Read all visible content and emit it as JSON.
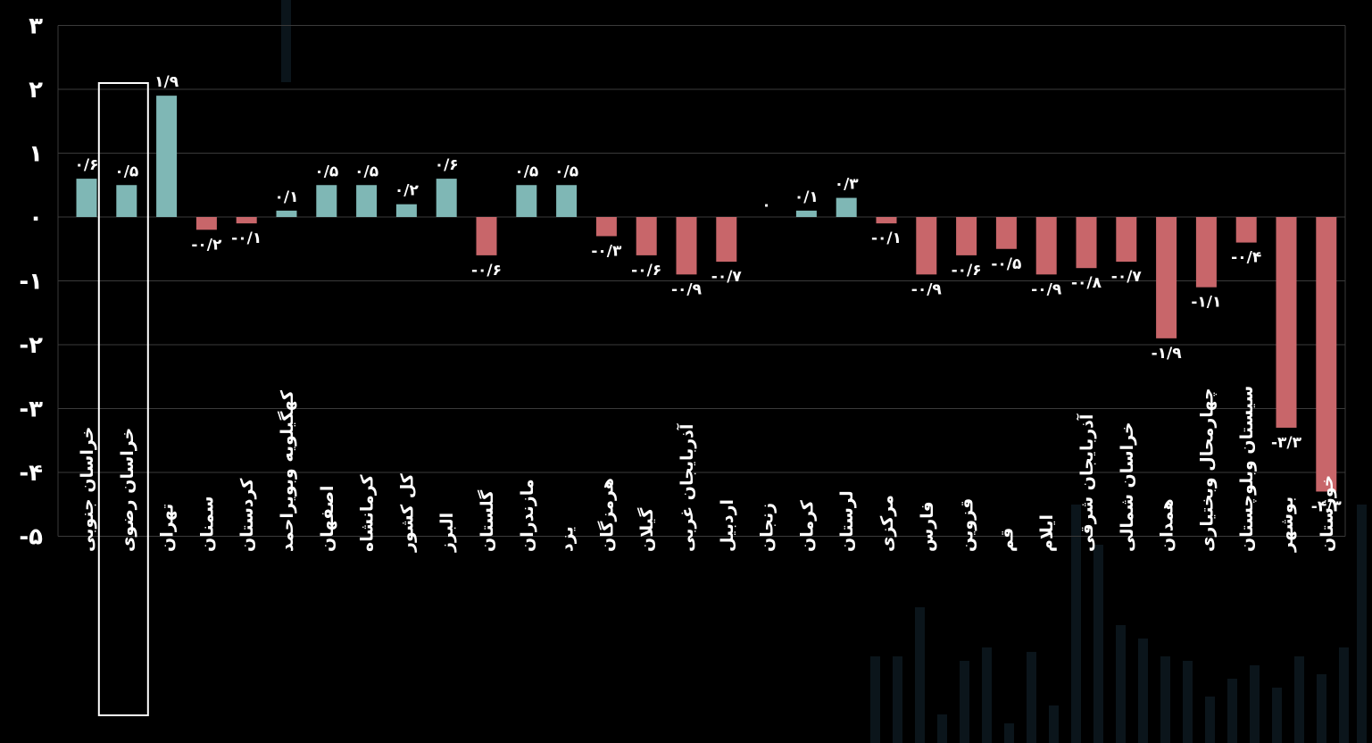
{
  "chart_data": {
    "type": "bar",
    "title": "",
    "xlabel": "",
    "ylabel": "",
    "ylim": [
      -5,
      3
    ],
    "yticks": [
      3,
      2,
      1,
      0,
      -1,
      -2,
      -3,
      -4,
      -5
    ],
    "ytick_labels": [
      "۳",
      "۲",
      "۱",
      "۰",
      "-۱",
      "-۲",
      "-۳",
      "-۴",
      "-۵"
    ],
    "grid": true,
    "positive_color": "#7fb7b5",
    "negative_color": "#c8666a",
    "highlighted_category": "خراسان رضوی",
    "categories": [
      "خراسان جنوبی",
      "خراسان رضوی",
      "تهران",
      "سمنان",
      "کردستان",
      "کهگیلویه وبویراحمد",
      "اصفهان",
      "کرمانشاه",
      "کل کشور",
      "البرز",
      "گلستان",
      "مازندران",
      "یزد",
      "هرمزگان",
      "گیلان",
      "آذربایجان غربی",
      "اردبیل",
      "زنجان",
      "کرمان",
      "لرستان",
      "مرکزی",
      "فارس",
      "قزوین",
      "قم",
      "ایلام",
      "آذربایجان شرقی",
      "خراسان شمالی",
      "همدان",
      "چهارمحال وبختیاری",
      "سیستان وبلوچستان",
      "بوشهر",
      "خوزستان"
    ],
    "values": [
      0.6,
      0.5,
      1.9,
      -0.2,
      -0.1,
      0.1,
      0.5,
      0.5,
      0.2,
      0.6,
      -0.6,
      0.5,
      0.5,
      -0.3,
      -0.6,
      -0.9,
      -0.7,
      0,
      0.1,
      0.3,
      -0.1,
      -0.9,
      -0.6,
      -0.5,
      -0.9,
      -0.8,
      -0.7,
      -1.9,
      -1.1,
      -0.4,
      -3.3,
      -4.3
    ],
    "value_labels": [
      "۰/۶",
      "۰/۵",
      "۱/۹",
      "-۰/۲",
      "-۰/۱",
      "۰/۱",
      "۰/۵",
      "۰/۵",
      "۰/۲",
      "۰/۶",
      "-۰/۶",
      "۰/۵",
      "۰/۵",
      "-۰/۳",
      "-۰/۶",
      "-۰/۹",
      "-۰/۷",
      "۰",
      "۰/۱",
      "۰/۳",
      "-۰/۱",
      "-۰/۹",
      "-۰/۶",
      "-۰/۵",
      "-۰/۹",
      "-۰/۸",
      "-۰/۷",
      "-۱/۹",
      "-۱/۱",
      "-۰/۴",
      "-۳/۳",
      "-۴/۳"
    ]
  }
}
